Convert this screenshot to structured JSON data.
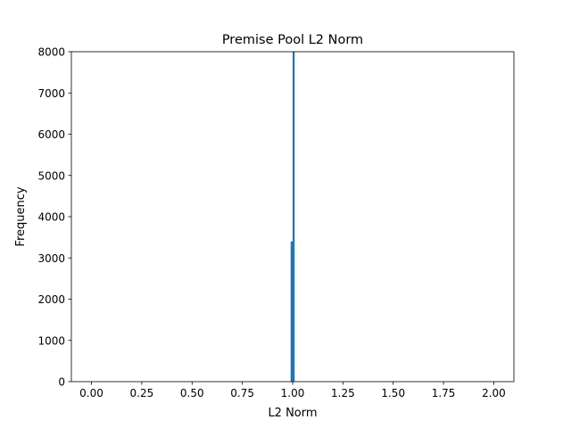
{
  "chart_data": {
    "type": "bar",
    "title": "Premise Pool L2 Norm",
    "xlabel": "L2 Norm",
    "ylabel": "Frequency",
    "xlim": [
      -0.1,
      2.1
    ],
    "ylim": [
      0,
      8000
    ],
    "x_ticks": [
      0.0,
      0.25,
      0.5,
      0.75,
      1.0,
      1.25,
      1.5,
      1.75,
      2.0
    ],
    "x_tick_labels": [
      "0.00",
      "0.25",
      "0.50",
      "0.75",
      "1.00",
      "1.25",
      "1.50",
      "1.75",
      "2.00"
    ],
    "y_ticks": [
      0,
      1000,
      2000,
      3000,
      4000,
      5000,
      6000,
      7000,
      8000
    ],
    "y_tick_labels": [
      "0",
      "1000",
      "2000",
      "3000",
      "4000",
      "5000",
      "6000",
      "7000",
      "8000"
    ],
    "grid": false,
    "bar_color": "#1f77b4",
    "bins": [
      {
        "x0": 0.99,
        "x1": 1.0,
        "count": 3400
      },
      {
        "x0": 1.0,
        "x1": 1.01,
        "count": 8000
      }
    ]
  }
}
